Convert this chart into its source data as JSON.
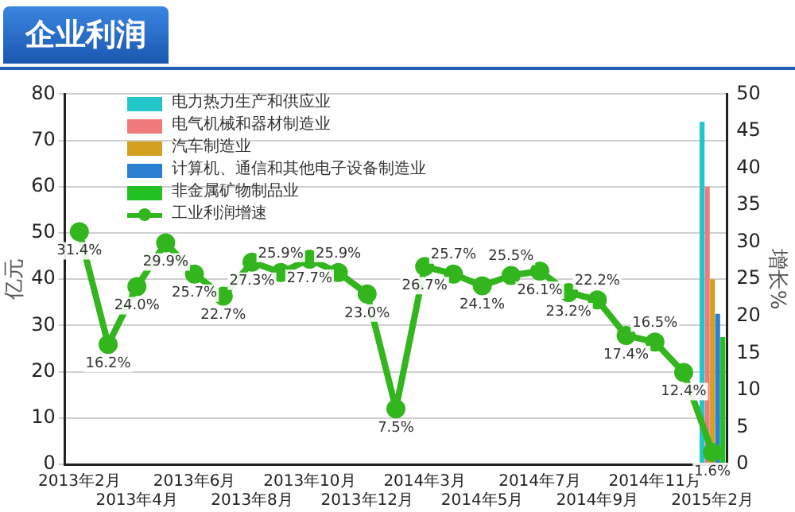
{
  "chart_data": {
    "type": "bar",
    "title": "企业利润",
    "ylabel": "亿元",
    "y2label": "增长%",
    "categories": [
      "2013年2月",
      null,
      "2013年4月",
      null,
      "2013年6月",
      null,
      "2013年8月",
      null,
      "2013年10月",
      null,
      "2013年12月",
      null,
      "2014年3月",
      null,
      "2014年5月",
      null,
      "2014年7月",
      null,
      "2014年9月",
      null,
      "2014年11月",
      null,
      "2015年2月"
    ],
    "series": [
      {
        "name": "电力热力生产和供应业",
        "color": "#22c5c8",
        "values": [
          null,
          null,
          null,
          null,
          null,
          null,
          null,
          null,
          null,
          null,
          null,
          null,
          null,
          null,
          null,
          null,
          null,
          null,
          null,
          null,
          null,
          null,
          74
        ]
      },
      {
        "name": "电气机械和器材制造业",
        "color": "#f07a7a",
        "values": [
          null,
          null,
          null,
          null,
          null,
          null,
          null,
          null,
          null,
          null,
          null,
          null,
          null,
          null,
          null,
          null,
          null,
          null,
          null,
          null,
          null,
          null,
          60
        ]
      },
      {
        "name": "汽车制造业",
        "color": "#d4a020",
        "values": [
          null,
          null,
          null,
          null,
          null,
          null,
          null,
          null,
          null,
          null,
          null,
          null,
          null,
          null,
          null,
          null,
          null,
          null,
          null,
          null,
          null,
          null,
          40
        ]
      },
      {
        "name": "计算机、通信和其他电子设备制造业",
        "color": "#2a7fd0",
        "values": [
          null,
          null,
          null,
          null,
          null,
          null,
          null,
          null,
          null,
          null,
          null,
          null,
          null,
          null,
          null,
          null,
          null,
          null,
          null,
          null,
          null,
          null,
          32.5
        ]
      },
      {
        "name": "非金属矿物制品业",
        "color": "#22c022",
        "values": [
          null,
          null,
          null,
          null,
          null,
          null,
          null,
          null,
          null,
          null,
          null,
          null,
          null,
          null,
          null,
          null,
          null,
          null,
          null,
          null,
          null,
          null,
          27.5
        ]
      },
      {
        "name": "工业利润增速",
        "type": "line",
        "axis": "y2",
        "color": "#33b51e",
        "marker": "circle",
        "line_style": "solid",
        "values": [
          31.4,
          16.2,
          24.0,
          29.9,
          25.7,
          22.7,
          27.3,
          25.9,
          27.7,
          25.9,
          23.0,
          7.5,
          26.7,
          25.7,
          24.1,
          25.5,
          26.1,
          23.2,
          22.2,
          17.4,
          16.5,
          12.4,
          1.6
        ],
        "value_labels": [
          "31.4%",
          "16.2%",
          "24.0%",
          "29.9%",
          "25.7%",
          "22.7%",
          "27.3%",
          "25.9%",
          "27.7%",
          "25.9%",
          "23.0%",
          "7.5%",
          "26.7%",
          "25.7%",
          "24.1%",
          "25.5%",
          "26.1%",
          "23.2%",
          "22.2%",
          "17.4%",
          "16.5%",
          "12.4%",
          "1.6%"
        ]
      }
    ],
    "ylim": [
      0,
      80
    ],
    "yticks": [
      0,
      10,
      20,
      30,
      40,
      50,
      60,
      70,
      80
    ],
    "y2lim": [
      0,
      50
    ],
    "y2ticks": [
      0,
      5,
      10,
      15,
      20,
      25,
      30,
      35,
      40,
      45,
      50
    ],
    "grid": "y",
    "legend": "top left"
  }
}
